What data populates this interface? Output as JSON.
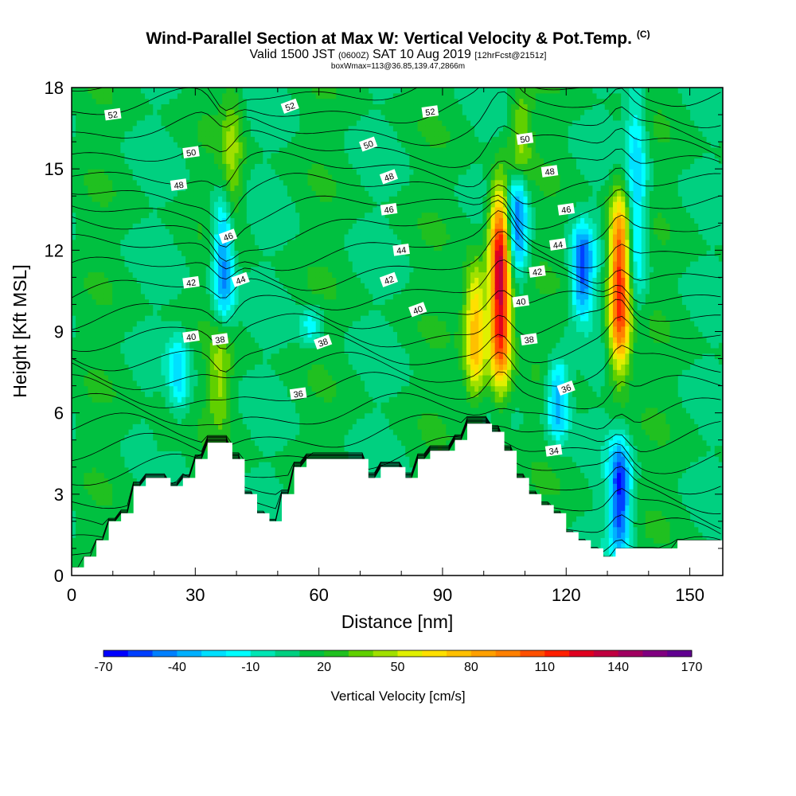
{
  "header": {
    "title": "Wind-Parallel Section at Max W: Vertical Velocity & Pot.Temp.",
    "title_suffix": "(C)",
    "valid_prefix": "Valid 1500 JST",
    "valid_utc": "(0600Z)",
    "valid_date": "SAT 10 Aug 2019",
    "forecast": "[12hrFcst@2151z]",
    "box_info": "boxWmax=113@36.85,139.47,2866m"
  },
  "chart_data": {
    "type": "heatmap",
    "xlabel": "Distance [nm]",
    "ylabel": "Height [Kft MSL]",
    "xlim": [
      0,
      158
    ],
    "ylim": [
      0,
      18
    ],
    "x_ticks": [
      "0",
      "30",
      "60",
      "90",
      "120",
      "150"
    ],
    "y_ticks": [
      "0",
      "3",
      "6",
      "9",
      "12",
      "15",
      "18"
    ],
    "colorbar": {
      "title": "Vertical Velocity [cm/s]",
      "levels": [
        -70,
        -60,
        -50,
        -40,
        -30,
        -20,
        -10,
        0,
        10,
        20,
        30,
        40,
        50,
        60,
        70,
        80,
        90,
        100,
        110,
        120,
        130,
        140,
        150,
        160,
        170
      ],
      "tick_labels": [
        "-70",
        "-40",
        "-10",
        "20",
        "50",
        "80",
        "110",
        "140",
        "170"
      ],
      "colors": [
        "#0000ff",
        "#0040ff",
        "#0080ff",
        "#00b0ff",
        "#00e0ff",
        "#00ffff",
        "#00e6b4",
        "#00d080",
        "#00c040",
        "#20c020",
        "#60d000",
        "#a0e000",
        "#e0f000",
        "#ffe000",
        "#ffc000",
        "#ffa000",
        "#ff8000",
        "#ff5000",
        "#ff2000",
        "#e00020",
        "#c00040",
        "#a00060",
        "#800080",
        "#600090"
      ]
    },
    "background_value": 0,
    "updrafts": [
      {
        "x": 104,
        "y_min": 7.0,
        "y_max": 14.3,
        "peak": 140
      },
      {
        "x": 98,
        "y_min": 6.5,
        "y_max": 11.5,
        "peak": 80
      },
      {
        "x": 133,
        "y_min": 7.5,
        "y_max": 14.0,
        "peak": 120
      },
      {
        "x": 36,
        "y_min": 5.5,
        "y_max": 9.0,
        "peak": 40
      },
      {
        "x": 39,
        "y_min": 12.0,
        "y_max": 18.0,
        "peak": 40
      },
      {
        "x": 109,
        "y_min": 14.5,
        "y_max": 18.0,
        "peak": 40
      },
      {
        "x": 22,
        "y_min": 4.0,
        "y_max": 7.0,
        "peak": 20
      }
    ],
    "downdrafts": [
      {
        "x": 133,
        "y_min": 0.8,
        "y_max": 5.0,
        "peak": -60
      },
      {
        "x": 124,
        "y_min": 9.5,
        "y_max": 13.0,
        "peak": -50
      },
      {
        "x": 108,
        "y_min": 11.0,
        "y_max": 14.8,
        "peak": -50
      },
      {
        "x": 37,
        "y_min": 9.5,
        "y_max": 14.0,
        "peak": -50
      },
      {
        "x": 118,
        "y_min": 5.0,
        "y_max": 8.0,
        "peak": -40
      },
      {
        "x": 137,
        "y_min": 10.0,
        "y_max": 18.0,
        "peak": -30
      },
      {
        "x": 26,
        "y_min": 6.0,
        "y_max": 9.0,
        "peak": -20
      },
      {
        "x": 58,
        "y_min": 8.5,
        "y_max": 10.0,
        "peak": -15
      }
    ],
    "terrain": [
      [
        0,
        0.3
      ],
      [
        3,
        0.7
      ],
      [
        6,
        1.3
      ],
      [
        9,
        2.0
      ],
      [
        12,
        2.3
      ],
      [
        15,
        3.3
      ],
      [
        18,
        3.6
      ],
      [
        24,
        3.3
      ],
      [
        27,
        3.6
      ],
      [
        30,
        4.3
      ],
      [
        33,
        4.9
      ],
      [
        39,
        4.3
      ],
      [
        42,
        3.0
      ],
      [
        45,
        2.3
      ],
      [
        48,
        2.0
      ],
      [
        51,
        3.0
      ],
      [
        54,
        4.0
      ],
      [
        57,
        4.3
      ],
      [
        72,
        3.6
      ],
      [
        75,
        4.0
      ],
      [
        81,
        3.6
      ],
      [
        84,
        4.3
      ],
      [
        87,
        4.6
      ],
      [
        93,
        5.0
      ],
      [
        96,
        5.6
      ],
      [
        102,
        5.3
      ],
      [
        105,
        4.6
      ],
      [
        108,
        3.6
      ],
      [
        111,
        3.0
      ],
      [
        114,
        2.6
      ],
      [
        117,
        2.3
      ],
      [
        120,
        1.6
      ],
      [
        123,
        1.3
      ],
      [
        126,
        1.0
      ],
      [
        129,
        0.7
      ],
      [
        132,
        1.0
      ],
      [
        147,
        1.3
      ],
      [
        158,
        1.3
      ]
    ],
    "theta_contour_labels": [
      {
        "value": "52",
        "x": 10,
        "y": 17.0
      },
      {
        "value": "52",
        "x": 53,
        "y": 17.3
      },
      {
        "value": "52",
        "x": 87,
        "y": 17.1
      },
      {
        "value": "50",
        "x": 29,
        "y": 15.6
      },
      {
        "value": "50",
        "x": 72,
        "y": 15.9
      },
      {
        "value": "50",
        "x": 110,
        "y": 16.1
      },
      {
        "value": "48",
        "x": 26,
        "y": 14.4
      },
      {
        "value": "48",
        "x": 77,
        "y": 14.7
      },
      {
        "value": "48",
        "x": 116,
        "y": 14.9
      },
      {
        "value": "46",
        "x": 77,
        "y": 13.5
      },
      {
        "value": "46",
        "x": 38,
        "y": 12.5
      },
      {
        "value": "46",
        "x": 120,
        "y": 13.5
      },
      {
        "value": "44",
        "x": 80,
        "y": 12.0
      },
      {
        "value": "44",
        "x": 41,
        "y": 10.9
      },
      {
        "value": "44",
        "x": 118,
        "y": 12.2
      },
      {
        "value": "42",
        "x": 29,
        "y": 10.8
      },
      {
        "value": "42",
        "x": 77,
        "y": 10.9
      },
      {
        "value": "42",
        "x": 113,
        "y": 11.2
      },
      {
        "value": "40",
        "x": 29,
        "y": 8.8
      },
      {
        "value": "40",
        "x": 84,
        "y": 9.8
      },
      {
        "value": "40",
        "x": 109,
        "y": 10.1
      },
      {
        "value": "38",
        "x": 36,
        "y": 8.7
      },
      {
        "value": "38",
        "x": 61,
        "y": 8.6
      },
      {
        "value": "38",
        "x": 111,
        "y": 8.7
      },
      {
        "value": "36",
        "x": 55,
        "y": 6.7
      },
      {
        "value": "36",
        "x": 120,
        "y": 6.9
      },
      {
        "value": "34",
        "x": 117,
        "y": 4.6
      }
    ],
    "theta_contour_range": [
      30,
      54
    ]
  }
}
